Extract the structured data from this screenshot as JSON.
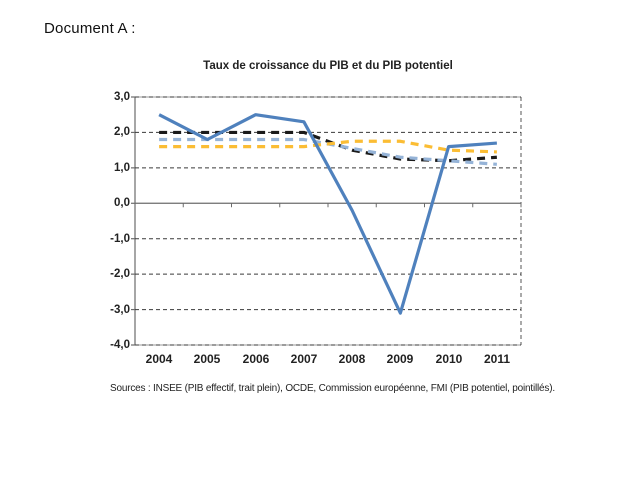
{
  "page": {
    "background": "#ffffff",
    "doc_label": "Document A :"
  },
  "chart_data": {
    "type": "line",
    "title": "Taux de croissance du PIB et du PIB potentiel",
    "source_note": "Sources : INSEE (PIB effectif, trait plein), OCDE, Commission européenne, FMI (PIB potentiel, pointillés).",
    "categories": [
      "2004",
      "2005",
      "2006",
      "2007",
      "2008",
      "2009",
      "2010",
      "2011"
    ],
    "y_ticks": [
      3.0,
      2.0,
      1.0,
      0.0,
      -1.0,
      -2.0,
      -3.0,
      -4.0
    ],
    "y_tick_labels": [
      "3,0",
      "2,0",
      "1,0",
      "0,0",
      "-1,0",
      "-2,0",
      "-3,0",
      "-4,0"
    ],
    "ylim": [
      -4.0,
      3.0
    ],
    "grid": "horizontal-dashed",
    "legend": "none",
    "colors": {
      "pib_effectif": "#4f81bd",
      "potentiel_noir": "#1a1a1a",
      "potentiel_bleu_clair": "#95b3d7",
      "potentiel_orange": "#fbbd34",
      "gridline": "#3a3a3a",
      "axis": "#6b6b6b"
    },
    "series": [
      {
        "name": "PIB effectif (INSEE, trait plein)",
        "style": "solid",
        "color": "#4f81bd",
        "values": [
          2.5,
          1.8,
          2.5,
          2.3,
          -0.2,
          -3.1,
          1.6,
          1.7
        ]
      },
      {
        "name": "PIB potentiel (pointillés noirs)",
        "style": "dashed",
        "color": "#1a1a1a",
        "values": [
          2.0,
          2.0,
          2.0,
          2.0,
          1.5,
          1.25,
          1.2,
          1.3
        ]
      },
      {
        "name": "PIB potentiel (pointillés bleu clair)",
        "style": "dashed",
        "color": "#95b3d7",
        "values": [
          1.8,
          1.8,
          1.8,
          1.8,
          1.55,
          1.3,
          1.2,
          1.1
        ]
      },
      {
        "name": "PIB potentiel (pointillés orange)",
        "style": "dashed",
        "color": "#fbbd34",
        "values": [
          1.6,
          1.6,
          1.6,
          1.6,
          1.75,
          1.75,
          1.5,
          1.45
        ]
      }
    ]
  }
}
